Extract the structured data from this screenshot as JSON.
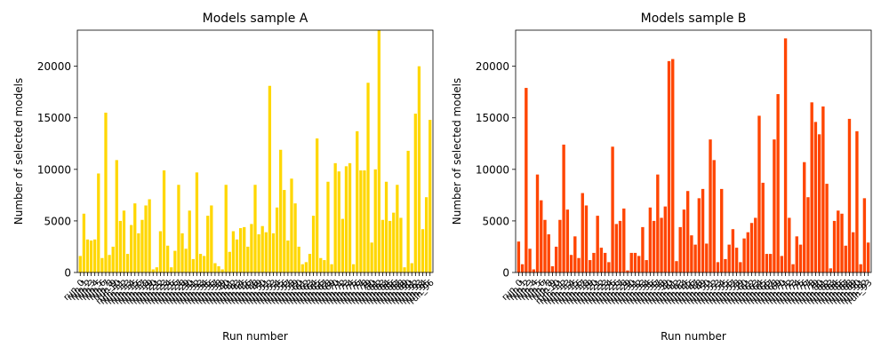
{
  "chart_data": [
    {
      "type": "bar",
      "title": "Models sample A",
      "xlabel": "Run number",
      "ylabel": "Number of selected models",
      "color": "#ffd700",
      "ylim": [
        0,
        23500
      ],
      "yticks": [
        0,
        5000,
        10000,
        15000,
        20000
      ],
      "x_tick_label_rule": "run_<index>",
      "values": [
        1600,
        5700,
        3200,
        3100,
        3200,
        9600,
        1400,
        15500,
        1700,
        2500,
        10900,
        5000,
        6000,
        1800,
        4600,
        6700,
        3800,
        5100,
        6500,
        7100,
        300,
        500,
        4000,
        9900,
        2600,
        500,
        2100,
        8500,
        3800,
        2300,
        6000,
        1300,
        9700,
        1800,
        1600,
        5500,
        6500,
        900,
        600,
        300,
        8500,
        2000,
        4000,
        3200,
        4300,
        4400,
        2500,
        4700,
        8500,
        3700,
        4500,
        3900,
        18100,
        3800,
        6300,
        11900,
        8000,
        3100,
        9100,
        6700,
        2500,
        800,
        1000,
        1800,
        5500,
        13000,
        1400,
        1200,
        8800,
        800,
        10600,
        9800,
        5200,
        10300,
        10600,
        800,
        13700,
        9900,
        9900,
        18400,
        2900,
        10000,
        23500,
        5100,
        8800,
        5000,
        5800,
        8500,
        5300,
        500,
        11800,
        900,
        15400,
        20000,
        4200,
        7300,
        14800
      ]
    },
    {
      "type": "bar",
      "title": "Models sample B",
      "xlabel": "Run number",
      "ylabel": "Number of selected models",
      "color": "#ff4500",
      "ylim": [
        0,
        23500
      ],
      "yticks": [
        0,
        5000,
        10000,
        15000,
        20000
      ],
      "x_tick_label_rule": "run_<index>",
      "values": [
        3000,
        800,
        17900,
        2300,
        300,
        9500,
        7000,
        5100,
        3700,
        600,
        2500,
        5100,
        12400,
        6100,
        1700,
        3500,
        1400,
        7700,
        6500,
        1200,
        1900,
        5500,
        2400,
        1900,
        1000,
        12200,
        4700,
        5000,
        6200,
        200,
        1900,
        1900,
        1600,
        4400,
        1200,
        6300,
        5000,
        9500,
        5300,
        6400,
        20500,
        20700,
        1100,
        4400,
        6100,
        7900,
        3600,
        2700,
        7200,
        8100,
        2800,
        12900,
        10900,
        1000,
        8100,
        1300,
        2700,
        4200,
        2400,
        1000,
        3300,
        3900,
        4800,
        5300,
        15200,
        8700,
        1800,
        1800,
        12900,
        17300,
        1600,
        22700,
        5300,
        800,
        3500,
        2700,
        10700,
        7300,
        16500,
        14600,
        13400,
        16100,
        8600,
        400,
        5000,
        6000,
        5700,
        2600,
        14900,
        3900,
        13700,
        800,
        7200,
        2900
      ]
    }
  ]
}
